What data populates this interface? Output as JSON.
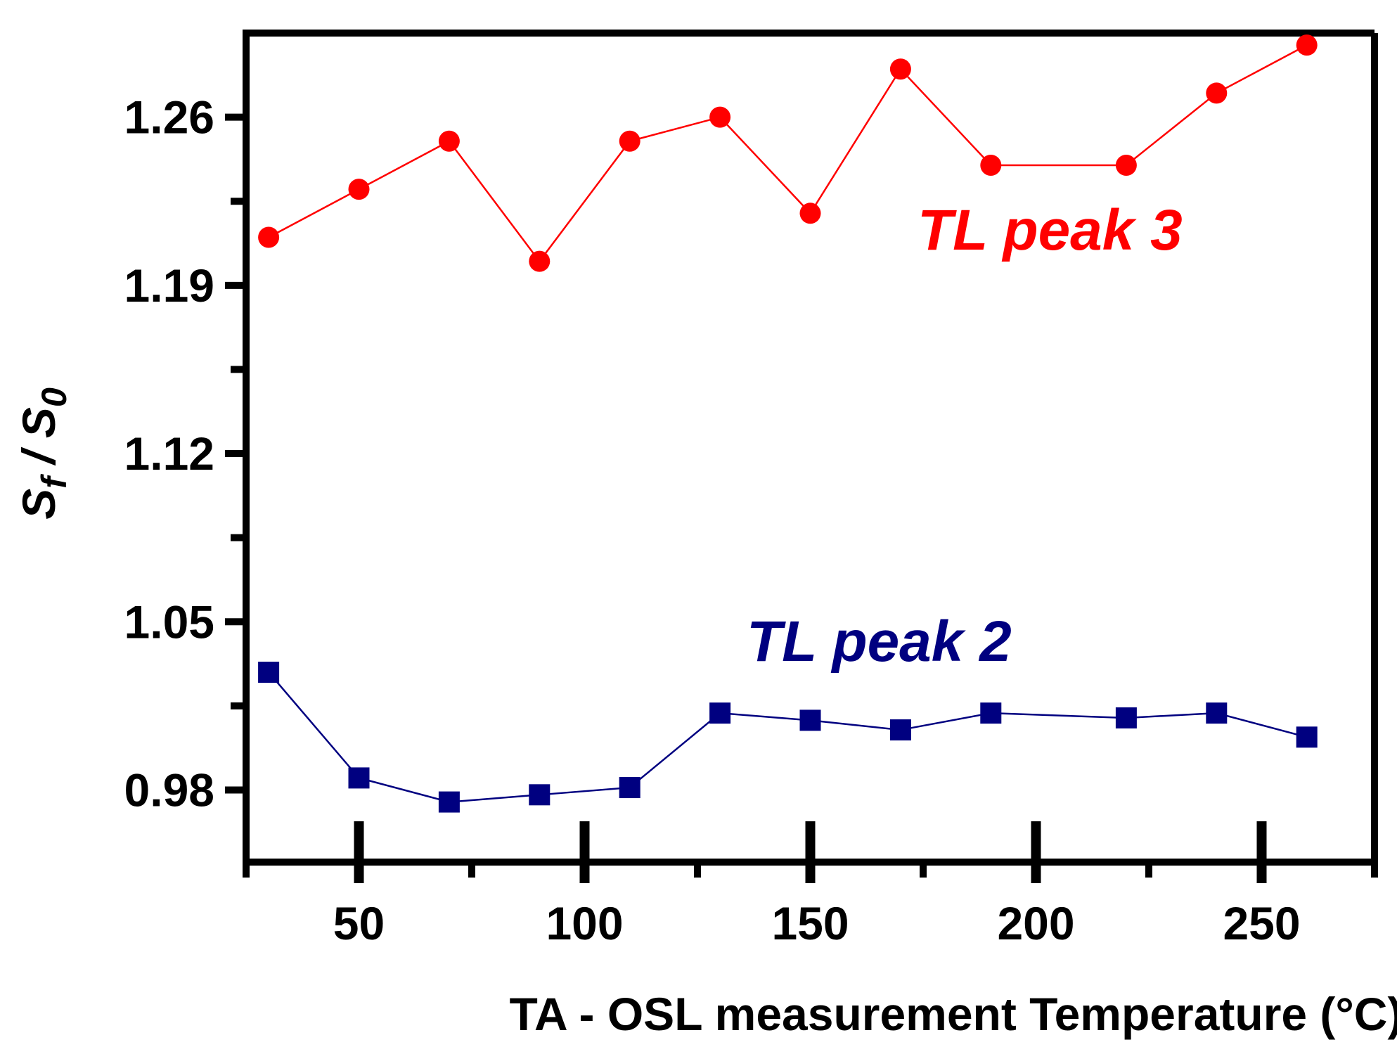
{
  "chart_data": {
    "type": "line",
    "title": "",
    "xlabel": "TA - OSL measurement Temperature (°C)",
    "ylabel_main": "S",
    "ylabel_sub1": "f",
    "ylabel_mid": " / S",
    "ylabel_sub2": "0",
    "xlim": [
      25,
      275
    ],
    "ylim": [
      0.95,
      1.295
    ],
    "xticks": [
      50,
      100,
      150,
      200,
      250
    ],
    "xtick_labels": [
      "50",
      "100",
      "150",
      "200",
      "250"
    ],
    "yticks": [
      0.98,
      1.05,
      1.12,
      1.19,
      1.26
    ],
    "ytick_labels": [
      "0.98",
      "1.05",
      "1.12",
      "1.19",
      "1.26"
    ],
    "grid": false,
    "series": [
      {
        "name": "TL peak 3",
        "color": "#ff0000",
        "marker": "circle",
        "x": [
          30,
          50,
          70,
          90,
          110,
          130,
          150,
          170,
          190,
          220,
          240,
          260
        ],
        "y": [
          1.21,
          1.23,
          1.25,
          1.2,
          1.25,
          1.26,
          1.22,
          1.28,
          1.24,
          1.24,
          1.27,
          1.29
        ]
      },
      {
        "name": "TL peak 2",
        "color": "#000080",
        "marker": "square",
        "x": [
          30,
          50,
          70,
          90,
          110,
          130,
          150,
          170,
          190,
          220,
          240,
          260
        ],
        "y": [
          1.029,
          0.985,
          0.975,
          0.978,
          0.981,
          1.012,
          1.009,
          1.005,
          1.012,
          1.01,
          1.012,
          1.002
        ]
      }
    ],
    "annotations": [
      {
        "text": "TL peak 3",
        "color": "#ff0000"
      },
      {
        "text": "TL peak 2",
        "color": "#000080"
      }
    ]
  }
}
